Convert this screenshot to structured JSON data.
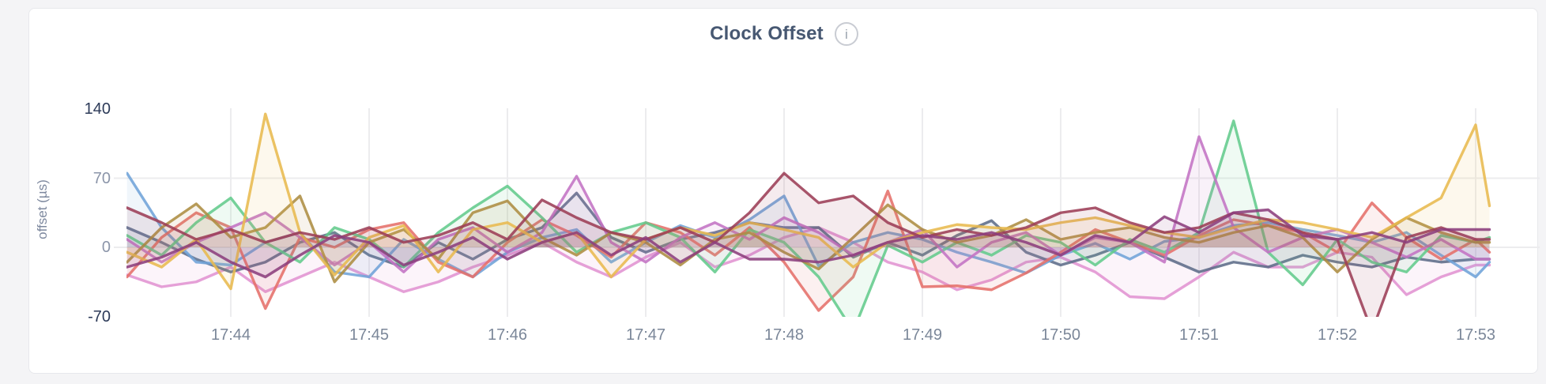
{
  "page": {
    "background": "#f4f4f6",
    "card_background": "#ffffff",
    "card_border": "#e7e8ec"
  },
  "header": {
    "title": "Clock Offset",
    "info_icon_glyph": "i"
  },
  "axes": {
    "y_title": "offset (µs)",
    "y_tick_color_edge": "#2c3a58",
    "y_tick_color_inner": "#8b95a9",
    "x_tick_color": "#7b8799",
    "gridline_color": "#ececee"
  },
  "chart_data": {
    "type": "line",
    "title": "Clock Offset",
    "xlabel": "",
    "ylabel": "offset (µs)",
    "ylim": [
      -70,
      140
    ],
    "grid": "on",
    "legend": "none",
    "fill_opacity": 0.1,
    "x_time_range": [
      "17:43",
      "17:53"
    ],
    "yticks": [
      {
        "label": "140",
        "value": 140,
        "color": "#2c3a58"
      },
      {
        "label": "70",
        "value": 70,
        "color": "#8b95a9"
      },
      {
        "label": "0",
        "value": 0,
        "color": "#8b95a9"
      },
      {
        "label": "-70",
        "value": -70,
        "color": "#2c3a58"
      }
    ],
    "grid_y_values": [
      70,
      0
    ],
    "xticks": [
      {
        "label": "17:44",
        "minute": 44
      },
      {
        "label": "17:45",
        "minute": 45
      },
      {
        "label": "17:46",
        "minute": 46
      },
      {
        "label": "17:47",
        "minute": 47
      },
      {
        "label": "17:48",
        "minute": 48
      },
      {
        "label": "17:49",
        "minute": 49
      },
      {
        "label": "17:50",
        "minute": 50
      },
      {
        "label": "17:51",
        "minute": 51
      },
      {
        "label": "17:52",
        "minute": 52
      },
      {
        "label": "17:53",
        "minute": 53
      }
    ],
    "x_minutes": [
      43.25,
      43.5,
      43.75,
      44,
      44.25,
      44.5,
      44.75,
      45,
      45.25,
      45.5,
      45.75,
      46,
      46.25,
      46.5,
      46.75,
      47,
      47.25,
      47.5,
      47.75,
      48,
      48.25,
      48.5,
      48.75,
      49,
      49.25,
      49.5,
      49.75,
      50,
      50.25,
      50.5,
      50.75,
      51,
      51.25,
      51.5,
      51.75,
      52,
      52.25,
      52.5,
      52.75,
      53,
      53.1
    ],
    "series": [
      {
        "name": "pink",
        "color": "#E193D2",
        "values": [
          -28,
          -40,
          -35,
          -20,
          -45,
          -30,
          -15,
          -30,
          -45,
          -35,
          -20,
          -8,
          5,
          -15,
          -30,
          -10,
          5,
          -20,
          -8,
          10,
          20,
          5,
          -15,
          -25,
          -43,
          -33,
          -15,
          -10,
          -25,
          -50,
          -52,
          -30,
          -5,
          -20,
          -20,
          -5,
          -10,
          -48,
          -30,
          -18,
          -18
        ]
      },
      {
        "name": "slate",
        "color": "#5D6C89",
        "values": [
          20,
          5,
          -12,
          -25,
          -15,
          5,
          15,
          -8,
          -20,
          5,
          -12,
          8,
          20,
          55,
          10,
          -5,
          8,
          15,
          25,
          20,
          20,
          -10,
          5,
          -8,
          12,
          27,
          -5,
          -18,
          -8,
          5,
          -10,
          -25,
          -15,
          -20,
          -8,
          -15,
          -20,
          -10,
          -15,
          -12,
          -12
        ]
      },
      {
        "name": "blue",
        "color": "#6FA3D8",
        "values": [
          75,
          20,
          -15,
          -18,
          5,
          15,
          -25,
          -30,
          8,
          -12,
          -30,
          -5,
          10,
          18,
          -15,
          5,
          22,
          10,
          28,
          52,
          -19,
          5,
          15,
          8,
          -5,
          -15,
          -26,
          -8,
          4,
          -12,
          6,
          10,
          22,
          25,
          18,
          12,
          5,
          15,
          -8,
          -30,
          -15
        ]
      },
      {
        "name": "salmon",
        "color": "#E5706A",
        "values": [
          -30,
          10,
          35,
          20,
          -62,
          10,
          0,
          18,
          25,
          -15,
          -30,
          5,
          28,
          12,
          -10,
          25,
          15,
          -8,
          20,
          -15,
          -64,
          -30,
          57,
          -40,
          -39,
          -43,
          -26,
          -5,
          18,
          5,
          -8,
          12,
          28,
          22,
          15,
          -5,
          45,
          10,
          -12,
          8,
          -5
        ]
      },
      {
        "name": "green",
        "color": "#63CB8C",
        "values": [
          12,
          -8,
          25,
          50,
          5,
          -15,
          20,
          8,
          -20,
          15,
          40,
          62,
          30,
          -5,
          15,
          25,
          10,
          -25,
          18,
          5,
          -30,
          -85,
          2,
          -15,
          5,
          -8,
          12,
          5,
          -18,
          8,
          -5,
          15,
          128,
          -5,
          -38,
          8,
          -15,
          -25,
          12,
          5,
          10
        ]
      },
      {
        "name": "orchid",
        "color": "#C373C4",
        "values": [
          8,
          -15,
          5,
          20,
          35,
          10,
          -18,
          5,
          -25,
          8,
          20,
          -5,
          15,
          72,
          5,
          -15,
          10,
          25,
          8,
          30,
          15,
          -8,
          5,
          18,
          -20,
          5,
          15,
          -8,
          10,
          5,
          -15,
          112,
          20,
          -5,
          10,
          18,
          5,
          -10,
          8,
          -12,
          -12
        ]
      },
      {
        "name": "olive",
        "color": "#AD8D42",
        "values": [
          -15,
          20,
          44,
          10,
          20,
          52,
          -35,
          5,
          18,
          -12,
          35,
          47,
          10,
          -8,
          15,
          5,
          -18,
          8,
          15,
          -5,
          -22,
          10,
          43,
          18,
          5,
          12,
          28,
          8,
          15,
          20,
          10,
          5,
          15,
          22,
          10,
          -25,
          8,
          30,
          15,
          5,
          5
        ]
      },
      {
        "name": "gold",
        "color": "#E8B94E",
        "values": [
          -5,
          -20,
          8,
          -42,
          135,
          15,
          -28,
          10,
          22,
          -25,
          18,
          25,
          5,
          15,
          -30,
          8,
          20,
          12,
          25,
          18,
          10,
          -20,
          5,
          15,
          23,
          20,
          18,
          25,
          30,
          22,
          15,
          10,
          20,
          28,
          25,
          18,
          10,
          30,
          50,
          124,
          42
        ]
      },
      {
        "name": "maroon",
        "color": "#9C3E56",
        "values": [
          40,
          25,
          8,
          18,
          5,
          15,
          8,
          20,
          5,
          12,
          25,
          8,
          48,
          30,
          15,
          8,
          20,
          5,
          35,
          75,
          45,
          52,
          25,
          10,
          18,
          12,
          20,
          35,
          40,
          25,
          15,
          20,
          35,
          28,
          15,
          8,
          -85,
          10,
          20,
          8,
          8
        ]
      },
      {
        "name": "purple",
        "color": "#8C3F7D",
        "values": [
          -20,
          -10,
          5,
          -15,
          -30,
          -8,
          12,
          5,
          -18,
          -5,
          10,
          -12,
          5,
          15,
          -8,
          10,
          -15,
          5,
          -12,
          -12,
          -15,
          -8,
          5,
          12,
          8,
          15,
          5,
          -8,
          12,
          5,
          31,
          15,
          35,
          38,
          12,
          8,
          15,
          5,
          18,
          18,
          18
        ]
      }
    ]
  }
}
